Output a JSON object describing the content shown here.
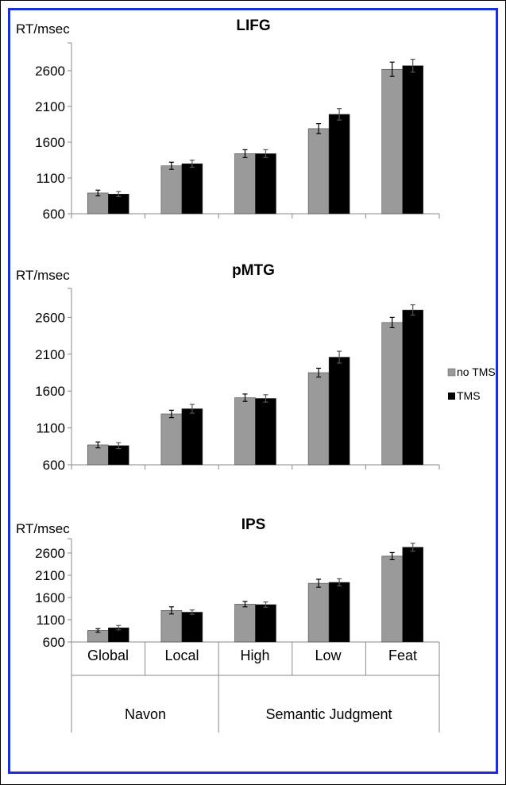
{
  "colors": {
    "no_tms": "#9a9a9a",
    "tms": "#000000",
    "frame": "#1c2fd6",
    "axis": "#8a8a8a"
  },
  "legend": {
    "items": [
      "no TMS",
      "TMS"
    ]
  },
  "groups": [
    {
      "label": "Navon",
      "categories": [
        "Global",
        "Local"
      ]
    },
    {
      "label": "Semantic Judgment",
      "categories": [
        "High",
        "Low",
        "Feat"
      ]
    }
  ],
  "chart_data": [
    {
      "type": "bar",
      "title": "LIFG",
      "ylabel": "RT/msec",
      "categories": [
        "Global",
        "Local",
        "High",
        "Low",
        "Feat"
      ],
      "ylim": [
        600,
        3100
      ],
      "yticks": [
        600,
        1100,
        1600,
        2100,
        2600
      ],
      "series": [
        {
          "name": "no TMS",
          "values": [
            890,
            1270,
            1440,
            1790,
            2620
          ],
          "errors": [
            40,
            50,
            55,
            70,
            100
          ]
        },
        {
          "name": "TMS",
          "values": [
            875,
            1300,
            1440,
            1990,
            2670
          ],
          "errors": [
            35,
            50,
            55,
            80,
            90
          ]
        }
      ]
    },
    {
      "type": "bar",
      "title": "pMTG",
      "ylabel": "RT/msec",
      "categories": [
        "Global",
        "Local",
        "High",
        "Low",
        "Feat"
      ],
      "ylim": [
        600,
        3100
      ],
      "yticks": [
        600,
        1100,
        1600,
        2100,
        2600
      ],
      "series": [
        {
          "name": "no TMS",
          "values": [
            870,
            1290,
            1510,
            1850,
            2530
          ],
          "errors": [
            40,
            50,
            50,
            60,
            70
          ]
        },
        {
          "name": "TMS",
          "values": [
            860,
            1360,
            1500,
            2060,
            2700
          ],
          "errors": [
            40,
            60,
            50,
            80,
            70
          ]
        }
      ]
    },
    {
      "type": "bar",
      "title": "IPS",
      "ylabel": "RT/msec",
      "categories": [
        "Global",
        "Local",
        "High",
        "Low",
        "Feat"
      ],
      "ylim": [
        600,
        3100
      ],
      "yticks": [
        600,
        1100,
        1600,
        2100,
        2600
      ],
      "series": [
        {
          "name": "no TMS",
          "values": [
            860,
            1310,
            1450,
            1920,
            2530
          ],
          "errors": [
            40,
            80,
            60,
            90,
            80
          ]
        },
        {
          "name": "TMS",
          "values": [
            920,
            1270,
            1440,
            1940,
            2730
          ],
          "errors": [
            50,
            50,
            60,
            80,
            90
          ]
        }
      ]
    }
  ]
}
